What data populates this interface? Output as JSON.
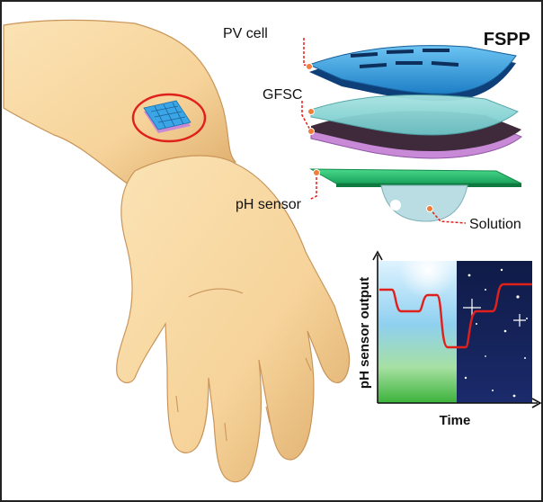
{
  "figure": {
    "title": "FSPP",
    "labels": {
      "pv_cell": "PV cell",
      "gfsc": "GFSC",
      "ph_sensor": "pH sensor",
      "solution": "Solution"
    }
  },
  "inset_chart": {
    "ylabel": "pH sensor output",
    "xlabel": "Time",
    "regions": [
      "day",
      "night"
    ]
  },
  "colors": {
    "skin": "#f6d39a",
    "skin_shadow": "#d9a866",
    "pv_layer": "#3aa6e8",
    "gfsc_top": "#7fd3d3",
    "gfsc_bottom": "#c88ad6",
    "sensor_layer": "#2ec978",
    "signal_line": "#e0201b",
    "callout_line": "#e0201b",
    "marker": "#f27c3a"
  }
}
